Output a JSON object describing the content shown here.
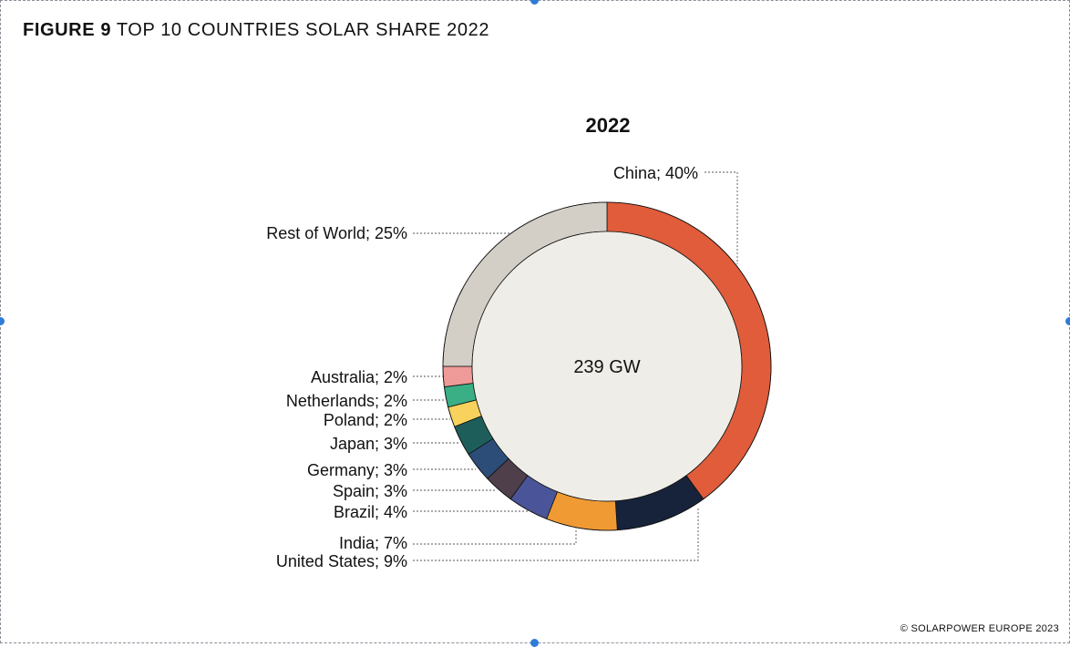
{
  "figure": {
    "number": "FIGURE 9",
    "title": "TOP 10 COUNTRIES SOLAR SHARE 2022"
  },
  "credit": "© SOLARPOWER EUROPE 2023",
  "chart_data": {
    "type": "pie",
    "variant": "donut",
    "title": "2022",
    "center_label": "239 GW",
    "slices": [
      {
        "label": "China; 40%",
        "name": "China",
        "value": 40,
        "color": "#e05c3a"
      },
      {
        "label": "United States; 9%",
        "name": "United States",
        "value": 9,
        "color": "#16233a"
      },
      {
        "label": "India; 7%",
        "name": "India",
        "value": 7,
        "color": "#f09a34"
      },
      {
        "label": "Brazil; 4%",
        "name": "Brazil",
        "value": 4,
        "color": "#4a5599"
      },
      {
        "label": "Spain; 3%",
        "name": "Spain",
        "value": 3,
        "color": "#4e3f4a"
      },
      {
        "label": "Germany; 3%",
        "name": "Germany",
        "value": 3,
        "color": "#2b4d78"
      },
      {
        "label": "Japan; 3%",
        "name": "Japan",
        "value": 3,
        "color": "#1e5e5a"
      },
      {
        "label": "Poland; 2%",
        "name": "Poland",
        "value": 2,
        "color": "#f7d25c"
      },
      {
        "label": "Netherlands; 2%",
        "name": "Netherlands",
        "value": 2,
        "color": "#3aaf86"
      },
      {
        "label": "Australia; 2%",
        "name": "Australia",
        "value": 2,
        "color": "#ee9a98"
      },
      {
        "label": "Rest of World; 25%",
        "name": "Rest of World",
        "value": 25,
        "color": "#d3cec6"
      }
    ],
    "inner_color": "#eeede7",
    "legend": "none"
  }
}
